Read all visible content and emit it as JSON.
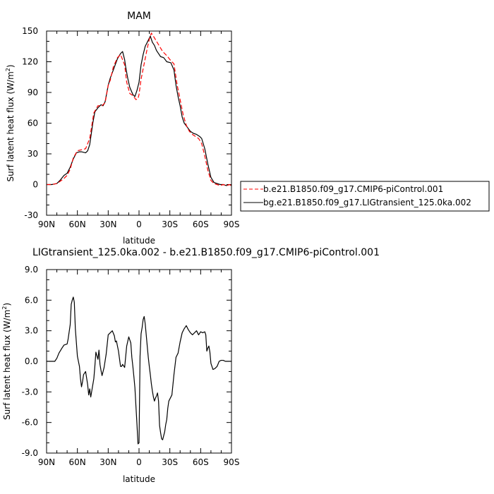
{
  "chart_data": [
    {
      "type": "line",
      "title": "MAM",
      "xlabel": "latitude",
      "ylabel": "Surf latent heat flux (W/m²)",
      "xlim": [
        90,
        -90
      ],
      "ylim": [
        -30,
        150
      ],
      "x_ticks": [
        "90N",
        "60N",
        "30N",
        "0",
        "30S",
        "60S",
        "90S"
      ],
      "x_tick_values": [
        90,
        60,
        30,
        0,
        -30,
        -60,
        -90
      ],
      "y_ticks": [
        "150",
        "120",
        "90",
        "60",
        "30",
        "0",
        "-30"
      ],
      "y_tick_values": [
        150,
        120,
        90,
        60,
        30,
        0,
        -30
      ],
      "legend_position": "right",
      "series": [
        {
          "name": "b.e21.B1850.f09_g17.CMIP6-piControl.001",
          "color": "#ff0000",
          "dash": "dashed",
          "x": [
            90,
            85,
            80,
            77,
            73,
            70,
            67,
            64,
            60,
            56,
            52,
            48,
            44,
            40,
            36,
            33,
            30,
            28,
            25,
            21,
            18,
            14,
            12,
            9,
            6,
            3,
            1,
            0,
            -2,
            -5,
            -8,
            -10,
            -12,
            -14,
            -17,
            -20,
            -23,
            -27,
            -31,
            -34,
            -37,
            -40,
            -43,
            -46,
            -49,
            -52,
            -55,
            -58,
            -61,
            -64,
            -67,
            -70,
            -73,
            -76,
            -79,
            -82,
            -85,
            -88,
            -90
          ],
          "y": [
            0,
            0,
            1,
            3,
            6,
            9,
            15,
            26,
            33,
            34,
            35,
            45,
            70,
            77,
            77,
            80,
            97,
            102,
            115,
            124,
            127,
            117,
            100,
            89,
            87,
            83,
            84,
            88,
            103,
            118,
            133,
            142,
            148,
            145,
            140,
            135,
            130,
            126,
            121,
            118,
            98,
            83,
            68,
            58,
            52,
            49,
            47,
            45,
            40,
            28,
            14,
            4,
            1,
            0,
            -1,
            0,
            -1,
            0,
            -1
          ]
        },
        {
          "name": "bg.e21.B1850.f09_g17.LIGtransient_125.0ka.002",
          "color": "#000000",
          "dash": "solid",
          "x": [
            90,
            85,
            80,
            77,
            73,
            70,
            67,
            64,
            61,
            58,
            56,
            52,
            50,
            48,
            45,
            43,
            40,
            37,
            35,
            33,
            30,
            28,
            25,
            21,
            18,
            16,
            14,
            13,
            11,
            9,
            6,
            4,
            2,
            0,
            -2,
            -4,
            -6,
            -9,
            -11,
            -13,
            -15,
            -17,
            -19,
            -21,
            -24,
            -27,
            -31,
            -34,
            -36,
            -38,
            -40,
            -42,
            -44,
            -47,
            -50,
            -53,
            -56,
            -59,
            -61,
            -64,
            -67,
            -70,
            -73,
            -76,
            -79,
            -82,
            -85,
            -88,
            -90
          ],
          "y": [
            0,
            0,
            1,
            4,
            9,
            11,
            17,
            25,
            31,
            32,
            32,
            31,
            33,
            39,
            60,
            71,
            75,
            78,
            77,
            81,
            97,
            104,
            112,
            123,
            128,
            130,
            122,
            115,
            104,
            95,
            88,
            86,
            92,
            100,
            117,
            127,
            135,
            141,
            145,
            139,
            136,
            131,
            128,
            125,
            124,
            120,
            119,
            112,
            97,
            86,
            77,
            66,
            60,
            56,
            52,
            50,
            49,
            47,
            45,
            35,
            20,
            7,
            2,
            1,
            0,
            0,
            -1,
            0,
            -1
          ]
        }
      ]
    },
    {
      "type": "line",
      "title": "LIGtransient_125.0ka.002 - b.e21.B1850.f09_g17.CMIP6-piControl.001",
      "xlabel": "latitude",
      "ylabel": "Surf latent heat flux (W/m²)",
      "xlim": [
        90,
        -90
      ],
      "ylim": [
        -9,
        9
      ],
      "x_ticks": [
        "90N",
        "60N",
        "30N",
        "0",
        "30S",
        "60S",
        "90S"
      ],
      "x_tick_values": [
        90,
        60,
        30,
        0,
        -30,
        -60,
        -90
      ],
      "y_ticks": [
        "9.0",
        "6.0",
        "3.0",
        "0.0",
        "-3.0",
        "-6.0",
        "-9.0"
      ],
      "y_tick_values": [
        9,
        6,
        3,
        0,
        -3,
        -6,
        -9
      ],
      "series": [
        {
          "color": "#000000",
          "dash": "solid",
          "x": [
            90,
            85,
            82,
            80,
            78,
            75,
            73,
            70,
            69,
            67,
            66,
            65,
            64,
            63,
            62,
            60,
            58,
            57,
            56,
            55,
            54,
            52,
            50,
            49,
            48,
            47,
            45,
            44,
            43,
            42,
            40,
            39,
            38,
            37,
            36,
            34,
            32,
            30,
            28,
            26,
            24,
            23,
            22,
            20,
            18,
            17,
            16,
            14,
            12,
            10,
            8,
            7,
            6,
            5,
            4,
            3,
            2,
            1,
            0,
            -1,
            -2,
            -3,
            -4,
            -5,
            -6,
            -7,
            -8,
            -9,
            -10,
            -11,
            -12,
            -13,
            -14,
            -15,
            -16,
            -17,
            -18,
            -19,
            -20,
            -21,
            -22,
            -23,
            -24,
            -25,
            -26,
            -27,
            -28,
            -29,
            -30,
            -32,
            -34,
            -36,
            -38,
            -40,
            -42,
            -44,
            -46,
            -48,
            -50,
            -52,
            -54,
            -56,
            -58,
            -60,
            -62,
            -64,
            -65,
            -66,
            -67,
            -68,
            -69,
            -70,
            -72,
            -74,
            -76,
            -78,
            -80,
            -82,
            -84,
            -86,
            -88,
            -90
          ],
          "y": [
            0.0,
            0.0,
            0.0,
            0.3,
            0.8,
            1.3,
            1.6,
            1.7,
            2.2,
            3.6,
            5.6,
            6.0,
            6.3,
            5.8,
            3.2,
            0.5,
            -0.5,
            -1.7,
            -2.5,
            -2.0,
            -1.3,
            -1.0,
            -2.3,
            -3.3,
            -2.7,
            -3.5,
            -2.3,
            -1.7,
            -0.5,
            0.9,
            0.2,
            1.1,
            -0.3,
            -0.9,
            -1.4,
            -0.6,
            0.7,
            2.6,
            2.8,
            3.0,
            2.5,
            1.9,
            2.0,
            1.0,
            -0.5,
            -0.5,
            -0.3,
            -0.6,
            1.5,
            2.4,
            1.8,
            0.4,
            -0.5,
            -1.5,
            -2.6,
            -4.4,
            -6.2,
            -8.1,
            -8.0,
            0.5,
            2.7,
            3.3,
            4.1,
            4.4,
            3.7,
            2.6,
            1.5,
            0.4,
            -0.5,
            -1.3,
            -2.2,
            -2.9,
            -3.5,
            -3.9,
            -3.6,
            -3.4,
            -3.1,
            -3.9,
            -6.3,
            -7.0,
            -7.6,
            -7.7,
            -7.3,
            -6.9,
            -6.2,
            -5.7,
            -4.6,
            -3.9,
            -3.7,
            -3.3,
            -1.3,
            0.4,
            0.8,
            1.9,
            2.8,
            3.2,
            3.5,
            3.1,
            2.8,
            2.6,
            2.8,
            3.0,
            2.6,
            2.9,
            2.8,
            2.9,
            2.6,
            1.0,
            1.3,
            1.5,
            0.9,
            -0.2,
            -0.8,
            -0.7,
            -0.5,
            0.0,
            0.1,
            0.1,
            0.0,
            0.0,
            0.0,
            0.0
          ]
        }
      ]
    }
  ]
}
